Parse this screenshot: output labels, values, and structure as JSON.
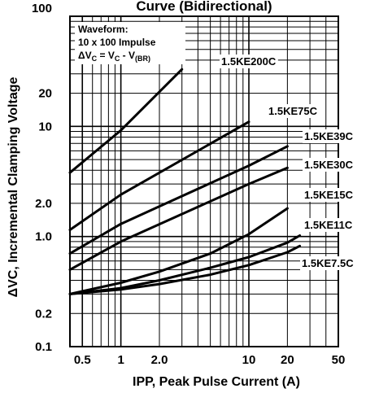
{
  "chart_data": {
    "type": "line",
    "title": "Curve (Bidirectional)",
    "xlabel": "IPP, Peak Pulse Current (A)",
    "ylabel": "ΔVC, Incremental Clamping Voltage",
    "x_scale": "log",
    "y_scale": "log",
    "xlim": [
      0.4,
      50
    ],
    "ylim": [
      0.1,
      100
    ],
    "x_ticks": [
      {
        "value": 0.5,
        "label": "0.5"
      },
      {
        "value": 1,
        "label": "1"
      },
      {
        "value": 2,
        "label": "2.0"
      },
      {
        "value": 10,
        "label": "10"
      },
      {
        "value": 20,
        "label": "20"
      },
      {
        "value": 50,
        "label": "50"
      }
    ],
    "y_ticks": [
      {
        "value": 100,
        "label": "100"
      },
      {
        "value": 20,
        "label": "20"
      },
      {
        "value": 10,
        "label": "10"
      },
      {
        "value": 2,
        "label": "2.0"
      },
      {
        "value": 1,
        "label": "1.0"
      },
      {
        "value": 0.2,
        "label": "0.2"
      },
      {
        "value": 0.1,
        "label": "0.1"
      }
    ],
    "grid": true,
    "annotation": {
      "lines": [
        "Waveform:",
        "10 x 100 Impulse"
      ],
      "formula": {
        "dv": "ΔV",
        "c1": "C",
        "eq": " = V",
        "c2": "C",
        "minus": " - V",
        "br": "(BR)"
      }
    },
    "series": [
      {
        "name": "1.5KE200C",
        "x": [
          0.4,
          1,
          3
        ],
        "y": [
          3.8,
          9.2,
          33
        ]
      },
      {
        "name": "1.5KE75C",
        "x": [
          0.4,
          1,
          10
        ],
        "y": [
          1.15,
          2.4,
          11
        ]
      },
      {
        "name": "1.5KE39C",
        "x": [
          0.4,
          1,
          10,
          20
        ],
        "y": [
          0.7,
          1.3,
          4.4,
          6.6
        ]
      },
      {
        "name": "1.5KE30C",
        "x": [
          0.4,
          1,
          10,
          20
        ],
        "y": [
          0.5,
          0.9,
          3.0,
          4.2
        ]
      },
      {
        "name": "1.5KE15C",
        "x": [
          0.4,
          1,
          2,
          5,
          10,
          20
        ],
        "y": [
          0.3,
          0.38,
          0.48,
          0.7,
          1.05,
          1.8
        ]
      },
      {
        "name": "1.5KE11C",
        "x": [
          0.4,
          1,
          2,
          5,
          10,
          20,
          25
        ],
        "y": [
          0.3,
          0.34,
          0.4,
          0.52,
          0.65,
          0.88,
          1.02
        ]
      },
      {
        "name": "1.5KE7.5C",
        "x": [
          0.4,
          1,
          2,
          5,
          10,
          20,
          25
        ],
        "y": [
          0.3,
          0.33,
          0.37,
          0.45,
          0.55,
          0.72,
          0.82
        ]
      }
    ]
  }
}
